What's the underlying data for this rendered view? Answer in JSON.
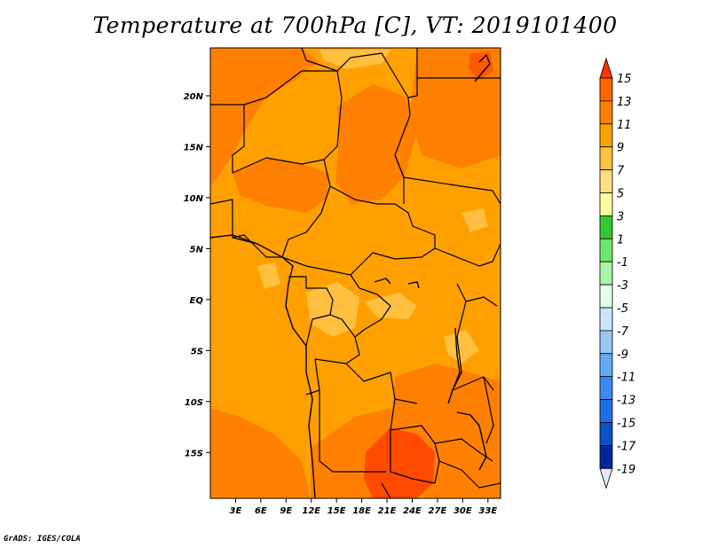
{
  "title": "Temperature at 700hPa [C], VT: 2019101400",
  "credit": "GrADS: IGES/COLA",
  "map": {
    "lon_labels": [
      "3E",
      "6E",
      "9E",
      "12E",
      "15E",
      "18E",
      "21E",
      "24E",
      "27E",
      "30E",
      "33E"
    ],
    "lat_labels": [
      "20N",
      "15N",
      "10N",
      "5N",
      "EQ",
      "5S",
      "10S",
      "15S"
    ],
    "lon_range": [
      0,
      34.5
    ],
    "lat_range": [
      -19.5,
      24.7
    ],
    "lon_ticks": [
      3,
      6,
      9,
      12,
      15,
      18,
      21,
      24,
      27,
      30,
      33
    ],
    "lat_ticks": [
      20,
      15,
      10,
      5,
      0,
      -5,
      -10,
      -15
    ]
  },
  "colorbar": {
    "labels": [
      "15",
      "13",
      "11",
      "9",
      "7",
      "5",
      "3",
      "1",
      "-1",
      "-3",
      "-5",
      "-7",
      "-9",
      "-11",
      "-13",
      "-15",
      "-17",
      "-19"
    ],
    "levels": [
      15,
      13,
      11,
      9,
      7,
      5,
      3,
      1,
      -1,
      -3,
      -5,
      -7,
      -9,
      -11,
      -13,
      -15,
      -17,
      -19
    ],
    "colors": [
      "#ff3300",
      "#ff6600",
      "#ff8000",
      "#ffa000",
      "#ffc040",
      "#ffe080",
      "#ffff9e",
      "#32c832",
      "#6ee66e",
      "#a8f5a8",
      "#e6ffe6",
      "#c8e6ff",
      "#96c8f5",
      "#64aaf0",
      "#3c8cf0",
      "#1e6ee6",
      "#0a50c8",
      "#00289c",
      "#000064"
    ]
  },
  "legend_colors": {
    "above_13": "#ff3300",
    "11_to_13": "#ff6600",
    "9_to_11": "#ffa000",
    "7_to_9": "#ffbf3f"
  }
}
